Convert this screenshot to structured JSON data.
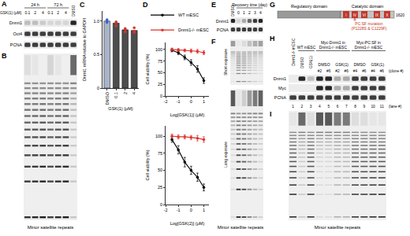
{
  "panel_labels": [
    "A",
    "B",
    "C",
    "D",
    "E",
    "F",
    "G",
    "H",
    "I"
  ],
  "chart_data": [
    {
      "type": "bar",
      "categories": [
        "DMSO",
        "0.1",
        "2",
        "4"
      ],
      "series": [
        {
          "type": "bar",
          "values": [
            1.0,
            0.97,
            0.87,
            0.86
          ],
          "colors": [
            "#a9b4c8",
            "#4d4d4d",
            "#4d4d4d",
            "#4d4d4d"
          ]
        },
        {
          "type": "scatter",
          "marker": "circle",
          "values": [
            [
              1.02,
              0.98,
              1.0
            ],
            [
              0.99,
              0.93,
              0.98
            ],
            [
              0.84,
              0.89,
              0.88
            ],
            [
              0.85,
              0.83,
              0.9
            ]
          ],
          "colors": [
            "#3a5fcd",
            "#e0302a",
            "#e0302a",
            "#e0302a"
          ]
        }
      ],
      "xlabel": "GSK(1) (μM)",
      "ylabel": "Dnmt1 mRNA relative to GAPDH",
      "ylim": [
        0,
        1.15
      ],
      "yticks": [
        0,
        0.5,
        {
          "value": 1,
          "label": "1.0"
        }
      ],
      "grid": false
    },
    {
      "type": "line",
      "x": [
        -1.5,
        -1,
        -0.5,
        0,
        0.5,
        1
      ],
      "series": [
        {
          "name": "WT mESC",
          "color": "#000000",
          "values": [
            98,
            93,
            83,
            72,
            58,
            33
          ],
          "errors": [
            3,
            4,
            5,
            6,
            7,
            6
          ],
          "marker": "circle",
          "line_style": "solid"
        },
        {
          "name": "Dnmt1-/- mESC",
          "color": "#e0302a",
          "values": [
            100,
            99,
            98,
            97,
            96,
            93
          ],
          "errors": [
            3,
            3,
            3,
            4,
            4,
            4
          ],
          "marker": "circle",
          "line_style": "solid"
        }
      ],
      "xlabel": "Log[GSK(1)] (μM)",
      "ylabel": "Cell viability (%)",
      "xlim": [
        -2,
        1.4
      ],
      "xticks": [
        -2,
        -1,
        0,
        1
      ],
      "ylim": [
        0,
        115
      ],
      "yticks": [
        0,
        25,
        50,
        75,
        100
      ],
      "legend": "above",
      "grid": false
    },
    {
      "type": "line",
      "x": [
        -1.5,
        -1,
        -0.5,
        0,
        0.5,
        1
      ],
      "series": [
        {
          "color": "#000000",
          "values": [
            95,
            80,
            62,
            50,
            40,
            25
          ],
          "errors": [
            4,
            6,
            7,
            6,
            6,
            5
          ],
          "marker": "circle",
          "line_style": "solid"
        },
        {
          "color": "#e0302a",
          "values": [
            100,
            99,
            99,
            98,
            97,
            95
          ],
          "errors": [
            3,
            3,
            3,
            3,
            4,
            4
          ],
          "marker": "circle",
          "line_style": "solid"
        }
      ],
      "xlabel": "Log[GSK(2)] (μM)",
      "ylabel": "Cell viability (%)",
      "xlim": [
        -2,
        1.4
      ],
      "xticks": [
        -2,
        -1,
        0,
        1
      ],
      "ylim": [
        0,
        115
      ],
      "yticks": [
        0,
        25,
        50,
        75,
        100
      ],
      "grid": false
    }
  ],
  "panels": {
    "A": {
      "groups": [
        {
          "label": "24 h",
          "lanes": [
            "0.1",
            "2",
            "4"
          ]
        },
        {
          "label": "72 h",
          "lanes": [
            "0.1",
            "2",
            "4"
          ]
        }
      ],
      "control": "DMSO",
      "treatment": "GSK(1) (μM)",
      "rows": [
        "Dnmt1",
        "Oct4",
        "PCNA"
      ]
    },
    "B": {
      "caption": "Minor satellite repeats"
    },
    "E": {
      "header": "Recovery time (day)",
      "control": "DMSO",
      "lanes": [
        "0",
        "1",
        "2",
        "3",
        "4"
      ],
      "rows": [
        "Dnmt1",
        "PCNA"
      ]
    },
    "F": {
      "exposures": [
        "Short exposure",
        "Long exposure"
      ],
      "caption": "Minor satellite repeats"
    },
    "G": {
      "regions": [
        "Regulatory domain",
        "Catalytic domain"
      ],
      "motifs": [
        "I",
        "IV",
        "VI",
        "IX",
        "X"
      ],
      "length": "1620",
      "mutation": [
        "PC:SF mutation",
        "(P1228S & C1229F)"
      ]
    },
    "H": {
      "groups": [
        {
          "label": "Dnmt1-/- mESC",
          "lanes": [
            1
          ]
        },
        {
          "label": "WT mESC",
          "lanes": [
            2,
            3
          ]
        },
        {
          "label": "Myc-Dnmt1 in Dnmt1-/- mESC",
          "lanes": [
            4,
            5,
            6,
            7
          ]
        },
        {
          "label": "Myc-PC:SF in Dnmt1-/- mESC",
          "lanes": [
            8,
            9,
            10,
            11
          ]
        }
      ],
      "treatments": [
        {
          "label": "DMSO",
          "lanes": [
            2
          ]
        },
        {
          "label": "GSK(1)",
          "lanes": [
            3
          ]
        },
        {
          "label": "DMSO",
          "lanes": [
            4,
            5
          ]
        },
        {
          "label": "GSK(1)",
          "lanes": [
            6,
            7
          ]
        },
        {
          "label": "DMSO",
          "lanes": [
            8,
            9
          ]
        },
        {
          "label": "GSK(1)",
          "lanes": [
            10,
            11
          ]
        }
      ],
      "clones": [
        null,
        null,
        null,
        "#2",
        "#6",
        "#2",
        "#6",
        "#4",
        "#6",
        "#4",
        "#6"
      ],
      "clone_header": "(clone #)",
      "lane_numbers": [
        1,
        2,
        3,
        4,
        5,
        6,
        7,
        8,
        9,
        10,
        11
      ],
      "lane_header": "(lane #)",
      "rows": [
        "Dnmt1",
        "Myc",
        "PCNA"
      ]
    },
    "I": {
      "caption": "Minor satellite repeats"
    }
  }
}
